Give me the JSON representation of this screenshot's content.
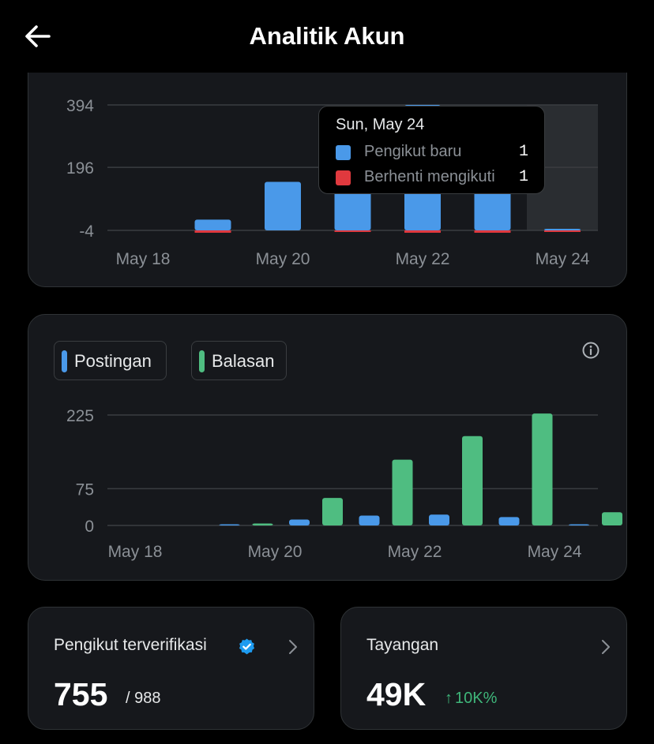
{
  "header": {
    "title": "Analitik Akun",
    "back_icon": "arrow-left-icon"
  },
  "followers_chart": {
    "chart_data": {
      "type": "bar",
      "categories": [
        "May 18",
        "May 19",
        "May 20",
        "May 21",
        "May 22",
        "May 23",
        "May 24"
      ],
      "x_tick_labels": [
        "May 18",
        "May 20",
        "May 22",
        "May 24"
      ],
      "y_ticks": [
        394,
        196,
        -4
      ],
      "ylim": [
        -4,
        394
      ],
      "series": [
        {
          "name": "Pengikut baru",
          "color": "#4a99e9",
          "values": [
            0,
            30,
            150,
            250,
            394,
            250,
            1
          ]
        },
        {
          "name": "Berhenti mengikuti",
          "color": "#e0393e",
          "values": [
            0,
            2,
            0,
            1,
            2,
            4,
            1
          ]
        }
      ],
      "highlight_index": 6,
      "grid": true
    },
    "tooltip": {
      "date": "Sun, May 24",
      "rows": [
        {
          "label": "Pengikut baru",
          "value": "1",
          "color": "#4a99e9"
        },
        {
          "label": "Berhenti mengikuti",
          "value": "1",
          "color": "#e0393e"
        }
      ]
    }
  },
  "posts_chart": {
    "legend": [
      {
        "label": "Postingan",
        "color": "#4a99e9"
      },
      {
        "label": "Balasan",
        "color": "#4fbd81"
      }
    ],
    "info_icon": "info-circle-icon",
    "chart_data": {
      "type": "bar",
      "categories": [
        "May 18",
        "May 19",
        "May 20",
        "May 21",
        "May 22",
        "May 23",
        "May 24"
      ],
      "x_tick_labels": [
        "May 18",
        "May 20",
        "May 22",
        "May 24"
      ],
      "y_ticks": [
        225,
        75,
        0
      ],
      "ylim": [
        0,
        225
      ],
      "series": [
        {
          "name": "Postingan",
          "color": "#4a99e9",
          "values": [
            0,
            1,
            12,
            20,
            22,
            17,
            1
          ]
        },
        {
          "name": "Balasan",
          "color": "#4fbd81",
          "values": [
            0,
            4,
            56,
            134,
            182,
            228,
            27
          ]
        }
      ],
      "grid": true
    }
  },
  "verified": {
    "label": "Pengikut terverifikasi",
    "value": "755",
    "of": "/ 988",
    "badge_color": "#1d9bf0"
  },
  "views": {
    "label": "Tayangan",
    "value": "49K",
    "delta": "10K%",
    "delta_arrow": "↑",
    "delta_color": "#3fb67a"
  }
}
